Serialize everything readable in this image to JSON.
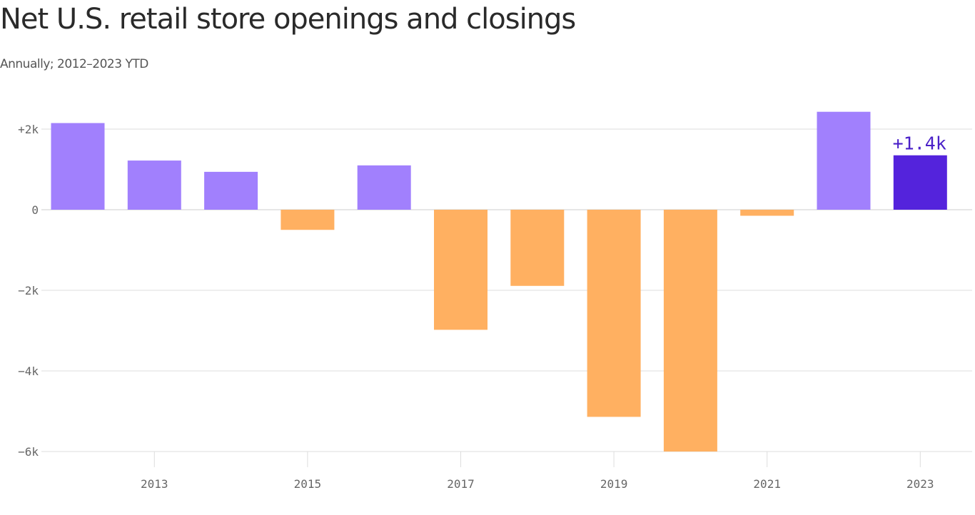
{
  "title": "Net U.S. retail store openings and closings",
  "subtitle": "Annually; 2012–2023 YTD",
  "colors": {
    "positive": "#a180fd",
    "negative": "#ffb061",
    "highlight": "#5423dc",
    "highlight_label": "#4a20c8",
    "grid": "#dddddd",
    "axis_text": "#666666"
  },
  "chart_data": {
    "type": "bar",
    "title": "Net U.S. retail store openings and closings",
    "subtitle": "Annually; 2012–2023 YTD",
    "x": [
      2012,
      2013,
      2014,
      2015,
      2016,
      2017,
      2018,
      2019,
      2020,
      2021,
      2022,
      2023
    ],
    "values": [
      2150,
      1220,
      940,
      -500,
      1100,
      -2980,
      -1890,
      -5140,
      -6000,
      -150,
      2430,
      1350
    ],
    "highlight_index": 11,
    "highlight_label": "+1.4k",
    "ylim": [
      -6000,
      2000
    ],
    "yticks": [
      {
        "value": 2000,
        "label": "+2k"
      },
      {
        "value": 0,
        "label": "0"
      },
      {
        "value": -2000,
        "label": "−2k"
      },
      {
        "value": -4000,
        "label": "−4k"
      },
      {
        "value": -6000,
        "label": "−6k"
      }
    ],
    "xticks": [
      {
        "value": 2013,
        "label": "2013"
      },
      {
        "value": 2015,
        "label": "2015"
      },
      {
        "value": 2017,
        "label": "2017"
      },
      {
        "value": 2019,
        "label": "2019"
      },
      {
        "value": 2021,
        "label": "2021"
      },
      {
        "value": 2023,
        "label": "2023"
      }
    ],
    "grid": true,
    "legend": "none"
  }
}
